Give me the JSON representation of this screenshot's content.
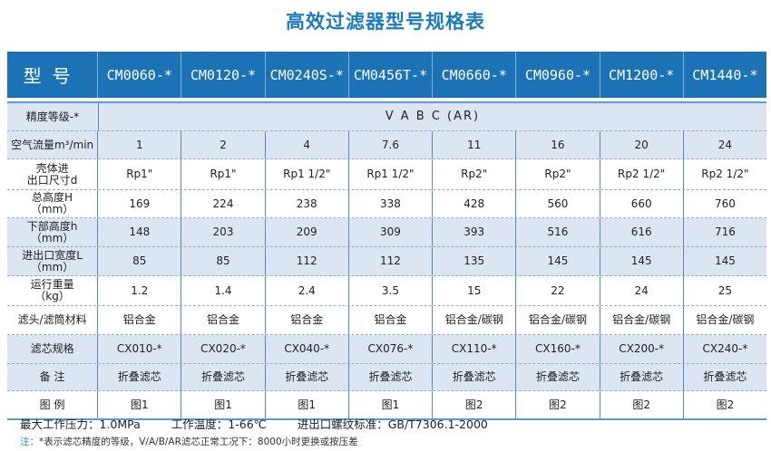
{
  "title": "高效过滤器型号规格表",
  "header": {
    "label": "型号",
    "models": [
      "CM0060-*",
      "CM0120-*",
      "CM0240S-*",
      "CM0456T-*",
      "CM0660-*",
      "CM0960-*",
      "CM1200-*",
      "CM1440-*"
    ]
  },
  "precision": {
    "label": "精度等级-*",
    "value": "V A B C (AR)"
  },
  "rows": [
    {
      "label": "空气流量m³/min",
      "values": [
        "1",
        "2",
        "4",
        "7.6",
        "11",
        "16",
        "20",
        "24"
      ]
    },
    {
      "label": "壳体进\n出口尺寸d",
      "values": [
        "Rp1\"",
        "Rp1\"",
        "Rp1 1/2\"",
        "Rp1 1/2\"",
        "Rp2\"",
        "Rp2\"",
        "Rp2 1/2\"",
        "Rp2 1/2\""
      ]
    },
    {
      "label": "总高度H\n（mm）",
      "values": [
        "169",
        "224",
        "238",
        "338",
        "428",
        "560",
        "660",
        "760"
      ]
    },
    {
      "label": "下部高度h\n（mm）",
      "values": [
        "148",
        "203",
        "209",
        "309",
        "393",
        "516",
        "616",
        "716"
      ]
    },
    {
      "label": "进出口宽度L\n（mm）",
      "values": [
        "85",
        "85",
        "112",
        "112",
        "135",
        "145",
        "145",
        "145"
      ]
    },
    {
      "label": "运行重量\n（kg）",
      "values": [
        "1.2",
        "1.4",
        "2.4",
        "3.5",
        "15",
        "22",
        "24",
        "25"
      ]
    },
    {
      "label": "滤头/滤筒材料",
      "values": [
        "铝合金",
        "铝合金",
        "铝合金",
        "铝合金",
        "铝合金/碳钢",
        "铝合金/碳钢",
        "铝合金/碳钢",
        "铝合金/碳钢"
      ]
    },
    {
      "label": "滤芯规格",
      "values": [
        "CX010-*",
        "CX020-*",
        "CX040-*",
        "CX076-*",
        "CX110-*",
        "CX160-*",
        "CX200-*",
        "CX240-*"
      ]
    },
    {
      "label": "备  注",
      "values": [
        "折叠滤芯",
        "折叠滤芯",
        "折叠滤芯",
        "折叠滤芯",
        "折叠滤芯",
        "折叠滤芯",
        "折叠滤芯",
        "折叠滤芯"
      ]
    },
    {
      "label": "图  例",
      "values": [
        "图1",
        "图1",
        "图1",
        "图1",
        "图2",
        "图2",
        "图2",
        "图2"
      ]
    }
  ],
  "footer": {
    "pressure": "最大工作压力：1.0MPa",
    "temperature": "工作温度：1-66℃",
    "thread": "进出口螺纹标准：GB/T7306.1-2000",
    "note_prefix": "注：",
    "note": "*表示滤芯精度的等级，V/A/B/AR滤芯正常工况下：8000小时更换或按压差"
  },
  "colors": {
    "header": "#1b73b6",
    "shaded_row": "#dbe6f2",
    "title": "#1d7cc0"
  }
}
